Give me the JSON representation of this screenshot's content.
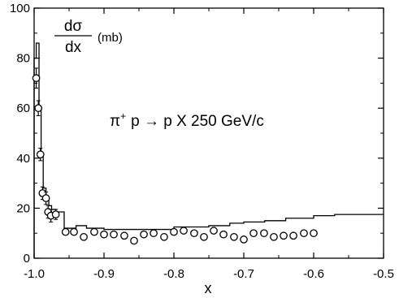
{
  "chart_data": {
    "type": "scatter",
    "title": "",
    "xlabel": "x",
    "ylabel": {
      "numerator": "dσ",
      "denominator": "dx",
      "unit": "(mb)"
    },
    "annotation": {
      "prefix": "π",
      "superscript": "+",
      "text": "p → p X  250 GeV/c"
    },
    "xlim": [
      -1.0,
      -0.5
    ],
    "ylim": [
      0,
      100
    ],
    "x_ticks": [
      {
        "value": -1.0,
        "label": "-1.0"
      },
      {
        "value": -0.9,
        "label": "-0.9"
      },
      {
        "value": -0.8,
        "label": "-0.8"
      },
      {
        "value": -0.7,
        "label": "-0.7"
      },
      {
        "value": -0.6,
        "label": "-0.6"
      },
      {
        "value": -0.5,
        "label": "-0.5"
      }
    ],
    "y_ticks": [
      {
        "value": 0,
        "label": "0"
      },
      {
        "value": 20,
        "label": "20"
      },
      {
        "value": 40,
        "label": "40"
      },
      {
        "value": 60,
        "label": "60"
      },
      {
        "value": 80,
        "label": "80"
      },
      {
        "value": 100,
        "label": "100"
      }
    ],
    "grid": false,
    "series": [
      {
        "kind": "points",
        "marker": "open-circle",
        "points": [
          {
            "x": -0.997,
            "y": 72,
            "err": 4
          },
          {
            "x": -0.994,
            "y": 60,
            "err": 3
          },
          {
            "x": -0.991,
            "y": 41.5,
            "err": 2.5
          },
          {
            "x": -0.988,
            "y": 26,
            "err": 2.5
          },
          {
            "x": -0.983,
            "y": 24,
            "err": 2.5
          },
          {
            "x": -0.98,
            "y": 18.5,
            "err": 2.5
          },
          {
            "x": -0.976,
            "y": 17,
            "err": 2.5
          },
          {
            "x": -0.969,
            "y": 17.5,
            "err": 2
          },
          {
            "x": -0.955,
            "y": 10.5,
            "err": 0
          },
          {
            "x": -0.943,
            "y": 10.5,
            "err": 0
          },
          {
            "x": -0.929,
            "y": 8.5,
            "err": 0
          },
          {
            "x": -0.914,
            "y": 10.5,
            "err": 0
          },
          {
            "x": -0.9,
            "y": 9.5,
            "err": 0
          },
          {
            "x": -0.886,
            "y": 9.5,
            "err": 0
          },
          {
            "x": -0.871,
            "y": 9.0,
            "err": 0
          },
          {
            "x": -0.857,
            "y": 7.0,
            "err": 0
          },
          {
            "x": -0.843,
            "y": 9.5,
            "err": 0
          },
          {
            "x": -0.829,
            "y": 10.0,
            "err": 0
          },
          {
            "x": -0.814,
            "y": 8.5,
            "err": 0
          },
          {
            "x": -0.8,
            "y": 10.5,
            "err": 0
          },
          {
            "x": -0.786,
            "y": 11.0,
            "err": 0
          },
          {
            "x": -0.771,
            "y": 10.0,
            "err": 0
          },
          {
            "x": -0.757,
            "y": 8.5,
            "err": 0
          },
          {
            "x": -0.743,
            "y": 11.0,
            "err": 0
          },
          {
            "x": -0.729,
            "y": 9.5,
            "err": 0
          },
          {
            "x": -0.714,
            "y": 8.5,
            "err": 0
          },
          {
            "x": -0.7,
            "y": 7.5,
            "err": 0
          },
          {
            "x": -0.686,
            "y": 10.0,
            "err": 0
          },
          {
            "x": -0.671,
            "y": 10.0,
            "err": 0
          },
          {
            "x": -0.657,
            "y": 8.5,
            "err": 0
          },
          {
            "x": -0.643,
            "y": 9.0,
            "err": 0
          },
          {
            "x": -0.629,
            "y": 9.0,
            "err": 0
          },
          {
            "x": -0.614,
            "y": 10.0,
            "err": 0
          },
          {
            "x": -0.6,
            "y": 10.0,
            "err": 0
          }
        ]
      },
      {
        "kind": "step",
        "points": [
          {
            "x": -1.0,
            "y": 0
          },
          {
            "x": -1.0,
            "y": 80
          },
          {
            "x": -0.997,
            "y": 86
          },
          {
            "x": -0.993,
            "y": 60
          },
          {
            "x": -0.99,
            "y": 42
          },
          {
            "x": -0.987,
            "y": 28
          },
          {
            "x": -0.983,
            "y": 24
          },
          {
            "x": -0.979,
            "y": 21
          },
          {
            "x": -0.975,
            "y": 19.5
          },
          {
            "x": -0.969,
            "y": 18.5
          },
          {
            "x": -0.96,
            "y": 18.5
          },
          {
            "x": -0.957,
            "y": 12
          },
          {
            "x": -0.94,
            "y": 13
          },
          {
            "x": -0.925,
            "y": 12
          },
          {
            "x": -0.9,
            "y": 11.5
          },
          {
            "x": -0.85,
            "y": 11.5
          },
          {
            "x": -0.8,
            "y": 12.5
          },
          {
            "x": -0.75,
            "y": 13
          },
          {
            "x": -0.72,
            "y": 14
          },
          {
            "x": -0.7,
            "y": 14.5
          },
          {
            "x": -0.67,
            "y": 15
          },
          {
            "x": -0.64,
            "y": 16
          },
          {
            "x": -0.6,
            "y": 17
          },
          {
            "x": -0.57,
            "y": 17.5
          },
          {
            "x": -0.53,
            "y": 17.5
          },
          {
            "x": -0.5,
            "y": 17.5
          }
        ]
      }
    ]
  }
}
